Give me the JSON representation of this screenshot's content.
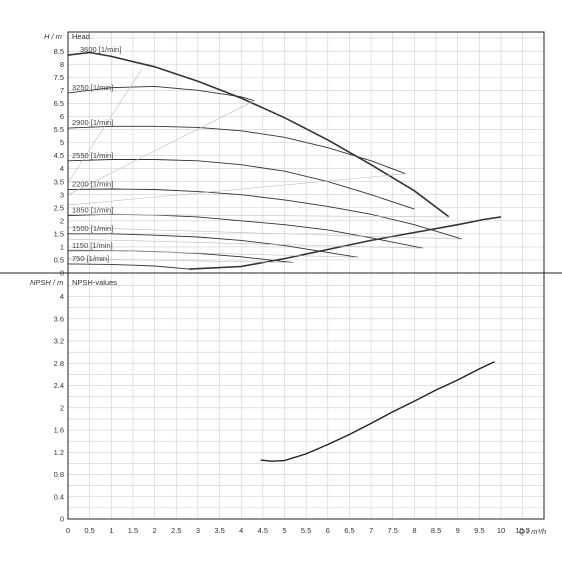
{
  "chart_data": [
    {
      "type": "line",
      "panel": "head",
      "title": "Head",
      "ylabel": "H / m",
      "xlabel": "Q / m³/h",
      "xlim": [
        0,
        11
      ],
      "ylim": [
        0,
        9
      ],
      "grid": true,
      "x_ticks": [
        "0",
        "0.5",
        "1",
        "1.5",
        "2",
        "2.5",
        "3",
        "3.5",
        "4",
        "4.5",
        "5",
        "5.5",
        "6",
        "6.5",
        "7",
        "7.5",
        "8",
        "8.5",
        "9",
        "9.5",
        "10",
        "10.5"
      ],
      "y_ticks": [
        "0",
        "0.5",
        "1",
        "1.5",
        "2",
        "2.5",
        "3",
        "3.5",
        "4",
        "4.5",
        "5",
        "5.5",
        "6",
        "6.5",
        "7",
        "7.5",
        "8",
        "8.5"
      ],
      "y_tick_values": [
        0,
        0.5,
        1,
        1.5,
        2,
        2.5,
        3,
        3.5,
        4,
        4.5,
        5,
        5.5,
        6,
        6.5,
        7,
        7.5,
        8,
        8.5
      ],
      "series": [
        {
          "name": "3600 [1/min]",
          "x": [
            0,
            0.5,
            1,
            2,
            3,
            4,
            5,
            6,
            7,
            8,
            8.8
          ],
          "y": [
            8.35,
            8.45,
            8.3,
            7.9,
            7.35,
            6.7,
            5.95,
            5.1,
            4.15,
            3.15,
            2.15
          ]
        },
        {
          "name": "3250 [1/min]",
          "x": [
            0,
            1,
            2,
            3,
            4,
            4.3
          ],
          "y": [
            6.9,
            7.1,
            7.15,
            7.0,
            6.75,
            6.6
          ]
        },
        {
          "name": "2900 [1/min]",
          "x": [
            0,
            1,
            2,
            3,
            4,
            5,
            6,
            7,
            7.8
          ],
          "y": [
            5.55,
            5.62,
            5.62,
            5.58,
            5.45,
            5.2,
            4.8,
            4.3,
            3.8
          ]
        },
        {
          "name": "2550 [1/min]",
          "x": [
            0,
            1,
            2,
            3,
            4,
            5,
            6,
            7,
            8
          ],
          "y": [
            4.3,
            4.35,
            4.35,
            4.3,
            4.15,
            3.9,
            3.5,
            3.0,
            2.45
          ]
        },
        {
          "name": "2200 [1/min]",
          "x": [
            0,
            1,
            2,
            3,
            4,
            5,
            6,
            7,
            8,
            9.1
          ],
          "y": [
            3.2,
            3.22,
            3.2,
            3.12,
            3.0,
            2.8,
            2.55,
            2.25,
            1.85,
            1.3
          ]
        },
        {
          "name": "1850 [1/min]",
          "x": [
            0,
            1,
            2,
            3,
            4,
            5,
            6,
            7,
            8.2
          ],
          "y": [
            2.2,
            2.25,
            2.22,
            2.15,
            2.0,
            1.85,
            1.65,
            1.35,
            0.95
          ]
        },
        {
          "name": "1500 [1/min]",
          "x": [
            0,
            1,
            2,
            3,
            4,
            5,
            6.7
          ],
          "y": [
            1.5,
            1.5,
            1.45,
            1.38,
            1.25,
            1.05,
            0.6
          ]
        },
        {
          "name": "1150 [1/min]",
          "x": [
            0,
            1,
            2,
            3,
            4,
            5.2
          ],
          "y": [
            0.85,
            0.86,
            0.82,
            0.75,
            0.62,
            0.4
          ]
        },
        {
          "name": "750 [1/min]",
          "x": [
            0,
            1,
            2,
            2.8,
            3.5
          ],
          "y": [
            0.35,
            0.33,
            0.27,
            0.15,
            0.2
          ]
        },
        {
          "name": "",
          "x": [
            2.8,
            4,
            5,
            6,
            7,
            8,
            9,
            9.6,
            10
          ],
          "y": [
            0.15,
            0.25,
            0.55,
            0.9,
            1.25,
            1.55,
            1.85,
            2.05,
            2.15
          ]
        },
        {
          "name": "",
          "x": [
            0,
            1.7
          ],
          "y": [
            3.45,
            7.8
          ]
        },
        {
          "name": "",
          "x": [
            0,
            4.3
          ],
          "y": [
            3.0,
            6.6
          ]
        },
        {
          "name": "",
          "x": [
            0,
            7.8
          ],
          "y": [
            2.6,
            3.8
          ]
        },
        {
          "name": "",
          "x": [
            0,
            8.8
          ],
          "y": [
            2.25,
            2.15
          ]
        },
        {
          "name": "",
          "x": [
            0,
            9.1
          ],
          "y": [
            1.75,
            1.3
          ]
        },
        {
          "name": "",
          "x": [
            0,
            8.2
          ],
          "y": [
            1.3,
            0.95
          ]
        },
        {
          "name": "",
          "x": [
            0,
            6.7
          ],
          "y": [
            0.9,
            0.6
          ]
        },
        {
          "name": "",
          "x": [
            0,
            5.2
          ],
          "y": [
            0.55,
            0.4
          ]
        }
      ]
    },
    {
      "type": "line",
      "panel": "npsh",
      "title": "NPSH-values",
      "ylabel": "NPSH / m",
      "xlabel": "Q / m³/h",
      "xlim": [
        0,
        11
      ],
      "ylim": [
        0,
        4.4
      ],
      "grid": true,
      "x_ticks": [
        "0",
        "0.5",
        "1",
        "1.5",
        "2",
        "2.5",
        "3",
        "3.5",
        "4",
        "4.5",
        "5",
        "5.5",
        "6",
        "6.5",
        "7",
        "7.5",
        "8",
        "8.5",
        "9",
        "9.5",
        "10",
        "10.5"
      ],
      "y_ticks": [
        "0",
        "0.4",
        "0.8",
        "1.2",
        "1.6",
        "2",
        "2.4",
        "2.8",
        "3.2",
        "3.6",
        "4"
      ],
      "y_tick_values": [
        0,
        0.4,
        0.8,
        1.2,
        1.6,
        2,
        2.4,
        2.8,
        3.2,
        3.6,
        4
      ],
      "series": [
        {
          "name": "",
          "x": [
            4.45,
            4.7,
            5.0,
            5.5,
            6.0,
            6.5,
            7.0,
            7.5,
            8.0,
            8.5,
            9.0,
            9.5,
            9.85
          ],
          "y": [
            1.06,
            1.04,
            1.05,
            1.17,
            1.34,
            1.52,
            1.72,
            1.93,
            2.12,
            2.32,
            2.5,
            2.7,
            2.83
          ]
        }
      ]
    }
  ]
}
